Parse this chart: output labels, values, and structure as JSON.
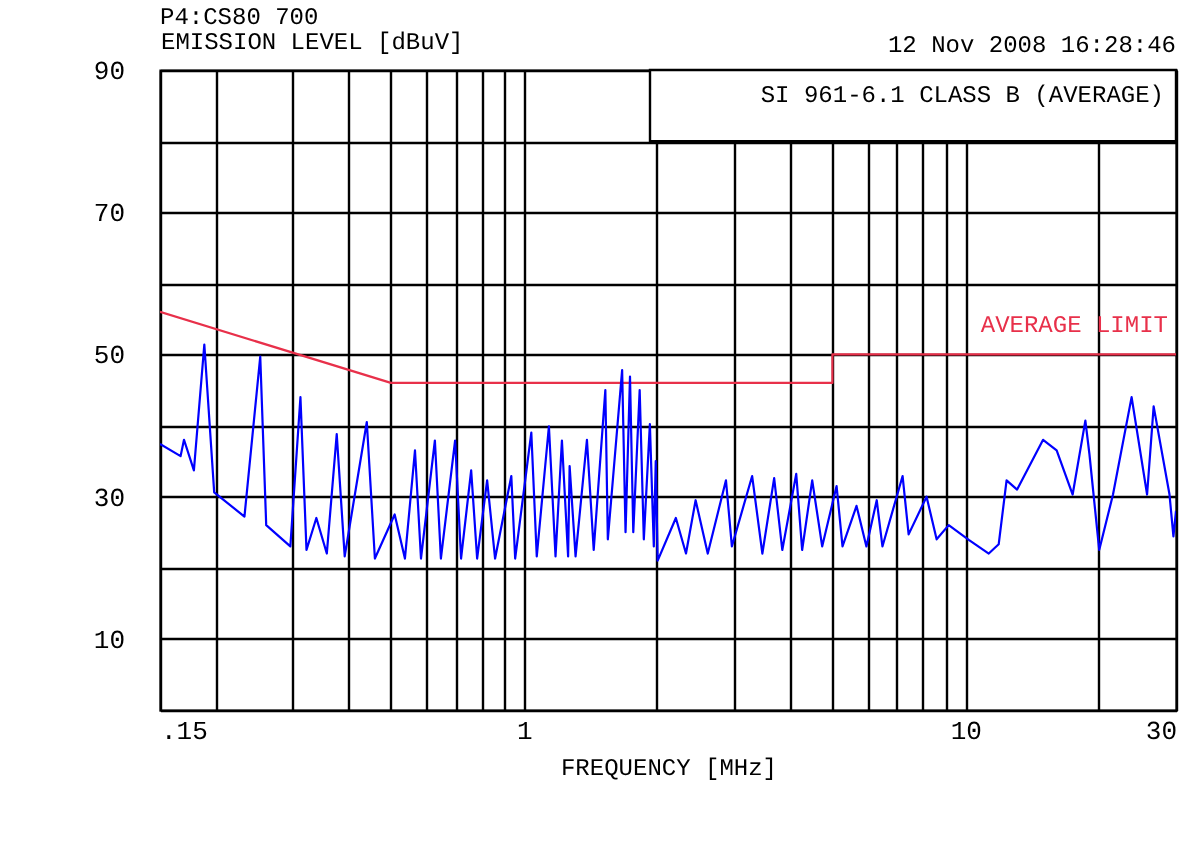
{
  "chart_data": {
    "type": "line",
    "title": "P4:CS80 700",
    "ylabel": "EMISSION LEVEL [dBuV]",
    "xlabel": "FREQUENCY [MHz]",
    "annotations": [
      "12 Nov 2008   16:28:46",
      "SI 961-6.1 CLASS B (AVERAGE)"
    ],
    "log": "x",
    "grid": true,
    "xlim": [
      0.15,
      30
    ],
    "xticks": [
      {
        "value": 0.15,
        "label": ".15"
      },
      {
        "value": 0.2,
        "label": null
      },
      {
        "value": 0.3,
        "label": null
      },
      {
        "value": 0.4,
        "label": null
      },
      {
        "value": 0.5,
        "label": null
      },
      {
        "value": 0.6,
        "label": null
      },
      {
        "value": 0.7,
        "label": null
      },
      {
        "value": 0.8,
        "label": null
      },
      {
        "value": 0.9,
        "label": null
      },
      1,
      {
        "value": 2,
        "label": null
      },
      {
        "value": 3,
        "label": null
      },
      {
        "value": 4,
        "label": null
      },
      {
        "value": 5,
        "label": null
      },
      {
        "value": 6,
        "label": null
      },
      {
        "value": 7,
        "label": null
      },
      {
        "value": 8,
        "label": null
      },
      {
        "value": 9,
        "label": null
      },
      10,
      {
        "value": 20,
        "label": null
      },
      30
    ],
    "ylim": [
      0,
      90
    ],
    "yticks": [
      {
        "value": 0,
        "label": null
      },
      10,
      {
        "value": 20,
        "label": null
      },
      30,
      {
        "value": 40,
        "label": null
      },
      50,
      {
        "value": 60,
        "label": null
      },
      70,
      {
        "value": 80,
        "label": null
      },
      90
    ],
    "series": [
      {
        "name": "AVERAGE LIMIT",
        "color": "#e8304a",
        "x": [
          0.15,
          0.5,
          5,
          5,
          30
        ],
        "values": [
          56,
          46,
          46,
          50,
          50
        ]
      },
      {
        "color": "#0000ff",
        "x": [
          0.15,
          0.167,
          0.17,
          0.179,
          0.189,
          0.199,
          0.233,
          0.253,
          0.261,
          0.296,
          0.312,
          0.322,
          0.339,
          0.358,
          0.377,
          0.393,
          0.441,
          0.46,
          0.51,
          0.538,
          0.567,
          0.585,
          0.629,
          0.649,
          0.699,
          0.721,
          0.76,
          0.784,
          0.826,
          0.861,
          0.937,
          0.956,
          1.04,
          1.07,
          1.14,
          1.18,
          1.22,
          1.26,
          1.27,
          1.31,
          1.39,
          1.44,
          1.53,
          1.55,
          1.67,
          1.7,
          1.74,
          1.77,
          1.83,
          1.87,
          1.93,
          1.97,
          1.99,
          2.01,
          2.21,
          2.33,
          2.45,
          2.61,
          2.87,
          2.96,
          3.29,
          3.47,
          3.69,
          3.85,
          4.14,
          4.27,
          4.5,
          4.74,
          5.11,
          5.27,
          5.67,
          5.97,
          6.3,
          6.49,
          7.21,
          7.44,
          8.17,
          8.61,
          9.17,
          10.2,
          11.3,
          11.9,
          12.4,
          13.1,
          15,
          16.1,
          17.5,
          18.7,
          19.1,
          20.1,
          21.6,
          23.8,
          25.8,
          26.7,
          29,
          29.6,
          30
        ],
        "values": [
          37.4,
          35.7,
          38,
          33.7,
          51.4,
          30.6,
          27.2,
          49.7,
          26,
          23,
          44,
          22.5,
          27,
          22,
          38.8,
          21.6,
          40.5,
          21.3,
          27.5,
          21.3,
          36.5,
          21.3,
          37.9,
          21.3,
          37.9,
          21.3,
          33.7,
          21.3,
          32.3,
          21.3,
          32.9,
          21.3,
          39,
          21.6,
          39.9,
          21.6,
          37.9,
          21.6,
          34.3,
          21.6,
          38,
          22.5,
          45,
          24,
          47.8,
          25,
          46.9,
          25,
          45,
          24,
          40.2,
          23,
          35,
          21,
          27,
          22,
          29.5,
          22,
          32.3,
          23,
          32.9,
          22,
          32.6,
          22.5,
          33.2,
          22.5,
          32.3,
          23,
          31.5,
          23,
          28.7,
          23,
          29.5,
          23,
          32.9,
          24.7,
          30,
          24,
          26,
          23.9,
          22,
          23.3,
          32.3,
          31,
          38,
          36.5,
          30.3,
          40.7,
          36,
          22.5,
          30.3,
          44,
          30.3,
          42.7,
          30.3,
          24.4,
          28
        ]
      }
    ]
  }
}
